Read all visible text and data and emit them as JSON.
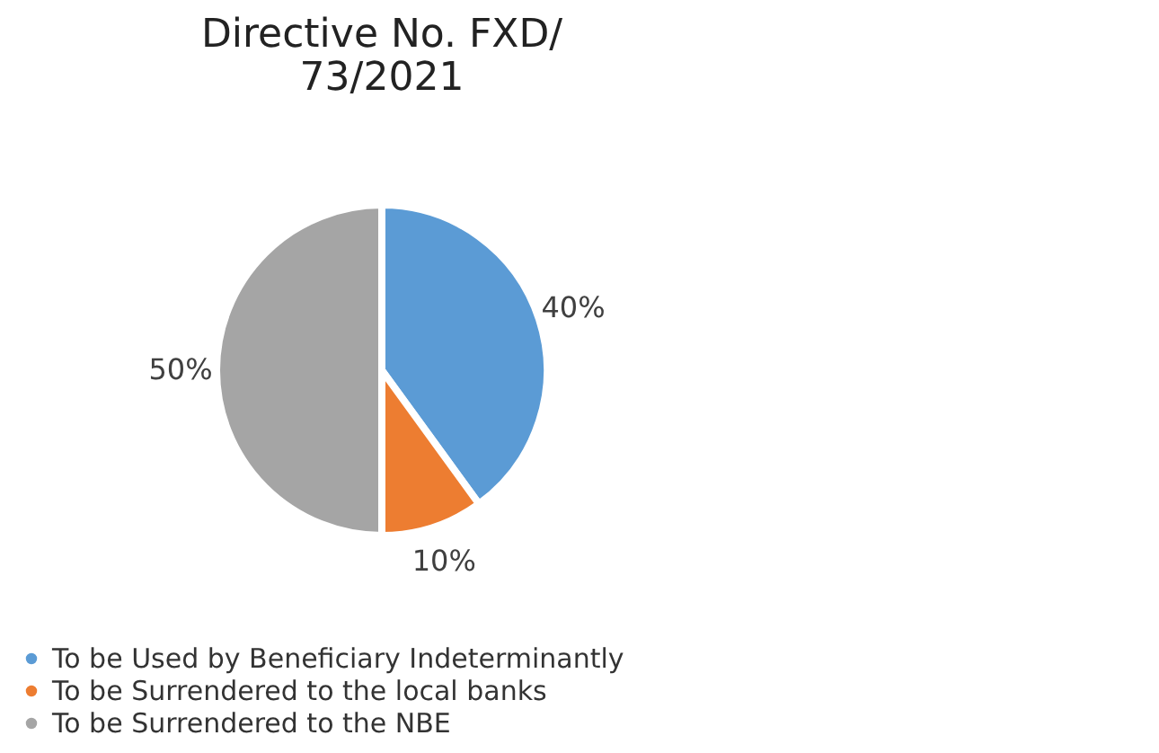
{
  "chart_data": {
    "type": "pie",
    "title": [
      "Directive No. FXD/",
      "73/2021"
    ],
    "categories": [
      "To be Used by Beneficiary Indeterminantly",
      "To be Surrendered to the local banks",
      "To be Surrendered to the NBE"
    ],
    "values": [
      40,
      10,
      50
    ],
    "colors": [
      "#5b9bd5",
      "#ed7d31",
      "#a5a5a5"
    ],
    "value_labels": [
      "40%",
      "10%",
      "50%"
    ],
    "legend": "bottom"
  }
}
